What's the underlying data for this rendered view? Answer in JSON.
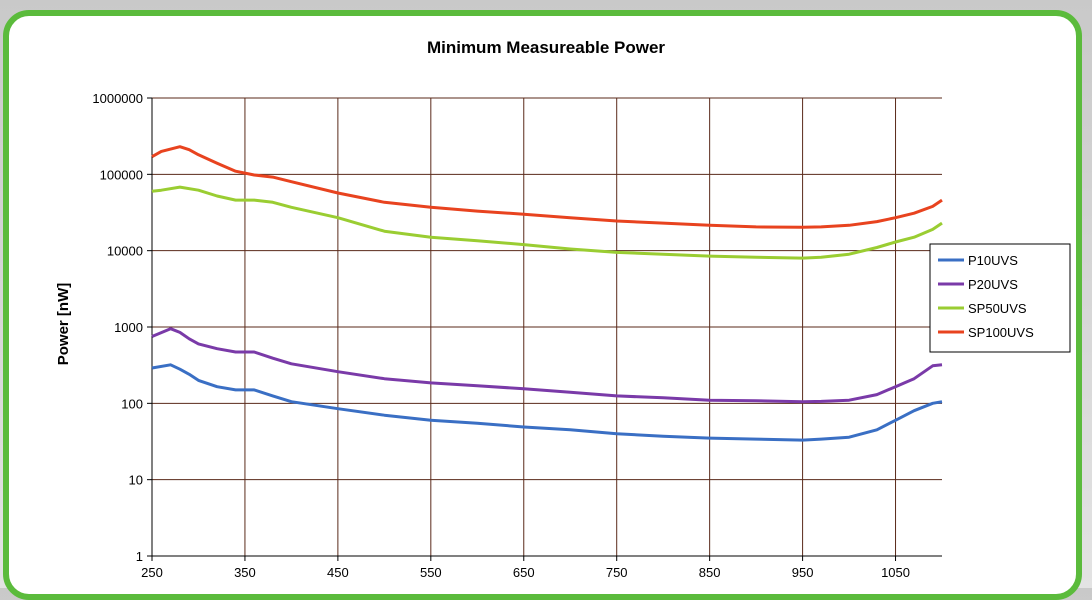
{
  "colors": {
    "frame": "#5bbb3c",
    "grid": "#5a2a1a"
  },
  "chart_data": {
    "type": "line",
    "title": "Minimum Measureable Power",
    "xlabel": "",
    "ylabel": "Power [nW]",
    "xlim": [
      250,
      1100
    ],
    "ylim": [
      1,
      1000000
    ],
    "y_scale": "log",
    "grid": true,
    "legend_position": "right",
    "x_ticks": [
      "250",
      "350",
      "450",
      "550",
      "650",
      "750",
      "850",
      "950",
      "1050"
    ],
    "y_ticks": [
      "1",
      "10",
      "100",
      "1000",
      "10000",
      "100000",
      "1000000"
    ],
    "series": [
      {
        "name": "P10UVS",
        "color": "#3a6fc4",
        "x": [
          250,
          270,
          280,
          290,
          300,
          320,
          340,
          360,
          380,
          400,
          450,
          500,
          550,
          600,
          650,
          700,
          750,
          800,
          850,
          900,
          950,
          970,
          1000,
          1030,
          1050,
          1070,
          1090,
          1100
        ],
        "y": [
          290,
          320,
          280,
          240,
          200,
          165,
          150,
          150,
          125,
          105,
          85,
          70,
          60,
          55,
          49,
          45,
          40,
          37,
          35,
          34,
          33,
          34,
          36,
          45,
          60,
          80,
          100,
          105
        ]
      },
      {
        "name": "P20UVS",
        "color": "#7a3aa8",
        "x": [
          250,
          270,
          280,
          290,
          300,
          320,
          340,
          360,
          380,
          400,
          450,
          500,
          550,
          600,
          650,
          700,
          750,
          800,
          850,
          900,
          950,
          970,
          1000,
          1030,
          1050,
          1070,
          1090,
          1100
        ],
        "y": [
          750,
          950,
          850,
          700,
          600,
          520,
          470,
          470,
          390,
          330,
          260,
          210,
          185,
          170,
          155,
          140,
          125,
          118,
          110,
          108,
          105,
          106,
          110,
          130,
          165,
          210,
          310,
          320
        ]
      },
      {
        "name": "SP50UVS",
        "color": "#9acd32",
        "x": [
          250,
          260,
          280,
          300,
          320,
          340,
          360,
          380,
          400,
          450,
          500,
          550,
          600,
          650,
          700,
          750,
          800,
          850,
          900,
          950,
          970,
          1000,
          1030,
          1050,
          1070,
          1090,
          1100
        ],
        "y": [
          60000,
          62000,
          68000,
          62000,
          52000,
          46000,
          46000,
          43000,
          37000,
          27000,
          18000,
          15000,
          13500,
          12000,
          10500,
          9500,
          9000,
          8500,
          8200,
          8000,
          8200,
          9000,
          11000,
          13000,
          15000,
          19000,
          23000
        ]
      },
      {
        "name": "SP100UVS",
        "color": "#e8431f",
        "x": [
          250,
          260,
          280,
          290,
          300,
          320,
          340,
          360,
          380,
          400,
          450,
          500,
          550,
          600,
          650,
          700,
          750,
          800,
          850,
          900,
          950,
          970,
          1000,
          1030,
          1050,
          1070,
          1090,
          1100
        ],
        "y": [
          170000,
          200000,
          230000,
          210000,
          180000,
          140000,
          110000,
          98000,
          92000,
          80000,
          57000,
          43000,
          37000,
          33000,
          30000,
          27000,
          24500,
          23000,
          21500,
          20500,
          20300,
          20500,
          21500,
          24000,
          27000,
          31000,
          38000,
          46000
        ]
      }
    ]
  }
}
